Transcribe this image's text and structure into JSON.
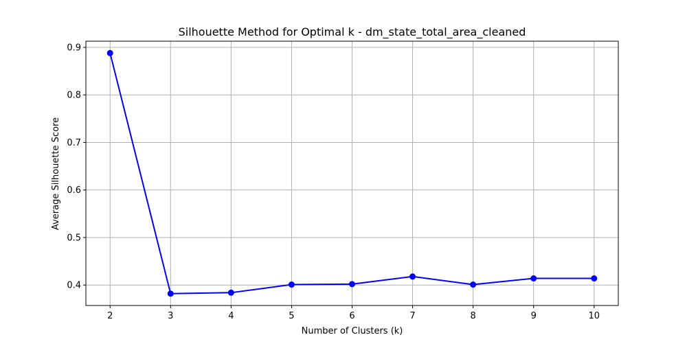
{
  "chart_data": {
    "type": "line",
    "title": "Silhouette Method for Optimal k - dm_state_total_area_cleaned",
    "xlabel": "Number of Clusters (k)",
    "ylabel": "Average Silhouette Score",
    "x": [
      2,
      3,
      4,
      5,
      6,
      7,
      8,
      9,
      10
    ],
    "series": [
      {
        "values": [
          0.888,
          0.382,
          0.384,
          0.401,
          0.402,
          0.418,
          0.401,
          0.414,
          0.414
        ],
        "color": "#0000ff",
        "marker": "circle"
      }
    ],
    "xlim": [
      1.6,
      10.4
    ],
    "ylim": [
      0.357,
      0.913
    ],
    "xticks": [
      2,
      3,
      4,
      5,
      6,
      7,
      8,
      9,
      10
    ],
    "yticks": [
      0.4,
      0.5,
      0.6,
      0.7,
      0.8,
      0.9
    ],
    "grid": true
  }
}
